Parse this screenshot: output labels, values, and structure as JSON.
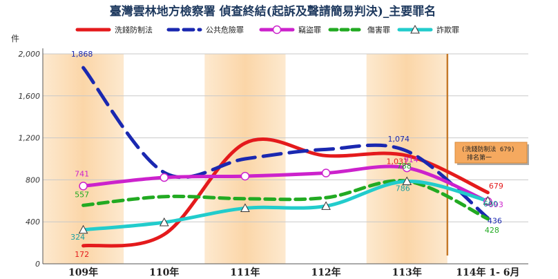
{
  "chart_data": {
    "type": "line",
    "title": "臺灣雲林地方檢察署 偵查終結(起訴及聲請簡易判決)_主要罪名",
    "ylabel": "件",
    "xlabel": "",
    "ylim": [
      0,
      2000
    ],
    "yticks": [
      "0",
      "400",
      "800",
      "1,200",
      "1,600",
      "2,000"
    ],
    "ytick_values": [
      0,
      400,
      800,
      1200,
      1600,
      2000
    ],
    "categories": [
      "109年",
      "110年",
      "111年",
      "112年",
      "113年",
      "114年 1- 6月"
    ],
    "legend_position": "top",
    "grid": true,
    "series": [
      {
        "name": "洗錢防制法",
        "values": [
          172,
          280,
          1150,
          1030,
          1031,
          679
        ],
        "labels": [
          "172",
          "",
          "",
          "",
          "1,031",
          "679"
        ],
        "color": "#e41a1c",
        "dash": "solid",
        "marker": "none"
      },
      {
        "name": "公共危險罪",
        "values": [
          1868,
          870,
          1000,
          1090,
          1074,
          436
        ],
        "labels": [
          "1,868",
          "",
          "",
          "",
          "1,074",
          "436"
        ],
        "color": "#1a28b0",
        "dash": "long",
        "marker": "none"
      },
      {
        "name": "竊盜罪",
        "values": [
          741,
          822,
          835,
          865,
          914,
          593
        ],
        "labels": [
          "741",
          "",
          "",
          "",
          "914",
          "593"
        ],
        "color": "#cc22cc",
        "dash": "solid",
        "marker": "circle"
      },
      {
        "name": "傷害罪",
        "values": [
          557,
          640,
          620,
          630,
          788,
          428
        ],
        "labels": [
          "557",
          "",
          "",
          "",
          "788",
          "428"
        ],
        "color": "#22aa22",
        "dash": "short",
        "marker": "none"
      },
      {
        "name": "詐欺罪",
        "values": [
          324,
          395,
          530,
          550,
          786,
          600
        ],
        "labels": [
          "324",
          "",
          "",
          "",
          "786",
          "600"
        ],
        "color": "#22cccc",
        "dash": "solid",
        "marker": "triangle"
      }
    ],
    "annotation": {
      "line1": "(洗錢防制法 679)",
      "line2": "排名第一"
    }
  }
}
